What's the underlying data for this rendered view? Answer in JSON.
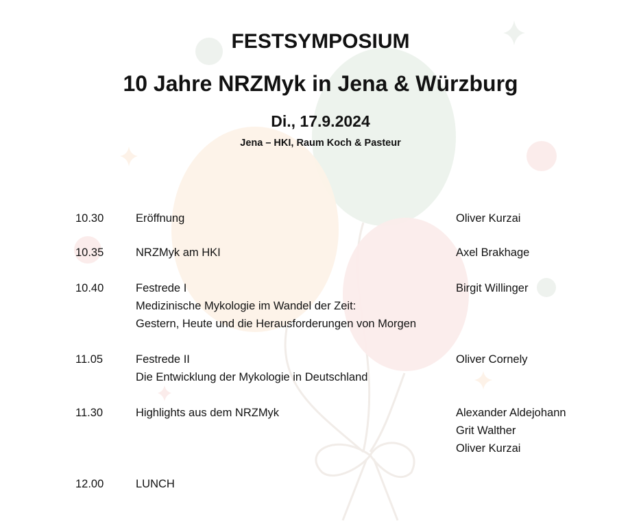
{
  "header": {
    "title": "FESTSYMPOSIUM",
    "subtitle": "10 Jahre NRZMyk in Jena & Würzburg",
    "date": "Di., 17.9.2024",
    "location": "Jena – HKI, Raum Koch & Pasteur"
  },
  "background": {
    "decoration": "balloons",
    "colors": [
      "#fdf2e8",
      "#edf3ed",
      "#fbeceb"
    ]
  },
  "program": [
    {
      "time": "10.30",
      "title": [
        "Eröffnung"
      ],
      "speakers": [
        "Oliver Kurzai"
      ]
    },
    {
      "time": "10.35",
      "title": [
        "NRZMyk am HKI"
      ],
      "speakers": [
        "Axel Brakhage"
      ]
    },
    {
      "time": "10.40",
      "title": [
        "Festrede I",
        "Medizinische Mykologie im Wandel der Zeit:",
        "Gestern, Heute und die Herausforderungen von Morgen"
      ],
      "speakers": [
        "Birgit Willinger"
      ]
    },
    {
      "time": "11.05",
      "title": [
        "Festrede II",
        "Die Entwicklung der Mykologie in Deutschland"
      ],
      "speakers": [
        "Oliver Cornely"
      ]
    },
    {
      "time": "11.30",
      "title": [
        "Highlights aus dem NRZMyk"
      ],
      "speakers": [
        "Alexander Aldejohann",
        "Grit Walther",
        "Oliver Kurzai"
      ]
    },
    {
      "time": "12.00",
      "title": [
        "LUNCH"
      ],
      "speakers": []
    }
  ]
}
